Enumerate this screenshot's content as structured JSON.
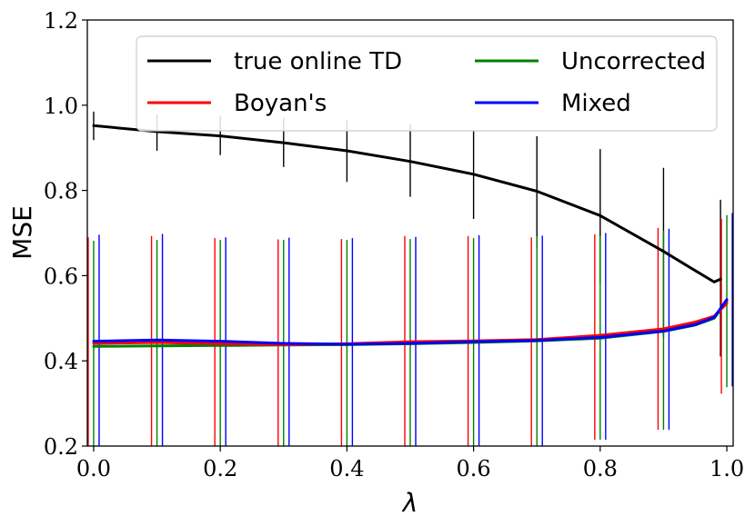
{
  "chart_data": {
    "type": "line",
    "title": "",
    "xlabel": "λ",
    "ylabel": "MSE",
    "xlim": [
      -0.01,
      1.01
    ],
    "ylim": [
      0.2,
      1.2
    ],
    "x_ticks": [
      "0.0",
      "0.2",
      "0.4",
      "0.6",
      "0.8",
      "1.0"
    ],
    "y_ticks": [
      "0.2",
      "0.4",
      "0.6",
      "0.8",
      "1.0",
      "1.2"
    ],
    "grid": false,
    "legend": {
      "placement": "top-right",
      "columns": 2
    },
    "series": [
      {
        "name": "true online TD",
        "color": "#000000",
        "x": [
          0.0,
          0.1,
          0.2,
          0.3,
          0.4,
          0.5,
          0.6,
          0.7,
          0.8,
          0.9,
          0.95,
          0.98,
          0.99
        ],
        "y": [
          0.952,
          0.938,
          0.928,
          0.912,
          0.893,
          0.868,
          0.838,
          0.798,
          0.741,
          0.657,
          0.612,
          0.585,
          0.592
        ],
        "error_x": [
          0.0,
          0.1,
          0.2,
          0.3,
          0.4,
          0.5,
          0.6,
          0.7,
          0.8,
          0.9,
          0.99
        ],
        "error_low": [
          0.918,
          0.893,
          0.883,
          0.855,
          0.82,
          0.785,
          0.733,
          0.665,
          0.582,
          0.455,
          0.41
        ],
        "error_high": [
          0.985,
          0.978,
          0.975,
          0.97,
          0.965,
          0.955,
          0.942,
          0.927,
          0.897,
          0.853,
          0.778
        ]
      },
      {
        "name": "Boyan's",
        "color": "#ff0000",
        "x": [
          0.0,
          0.1,
          0.2,
          0.3,
          0.4,
          0.5,
          0.6,
          0.7,
          0.8,
          0.9,
          0.95,
          0.98,
          1.0
        ],
        "y": [
          0.441,
          0.443,
          0.44,
          0.438,
          0.44,
          0.445,
          0.447,
          0.45,
          0.46,
          0.475,
          0.491,
          0.505,
          0.535
        ],
        "error_x": [
          0.0,
          0.1,
          0.2,
          0.3,
          0.4,
          0.5,
          0.6,
          0.7,
          0.8,
          0.9,
          1.0
        ],
        "error_low": [
          0.2,
          0.2,
          0.2,
          0.2,
          0.2,
          0.2,
          0.2,
          0.2,
          0.215,
          0.238,
          0.323
        ],
        "error_high": [
          0.69,
          0.693,
          0.688,
          0.685,
          0.686,
          0.693,
          0.693,
          0.69,
          0.697,
          0.712,
          0.733
        ]
      },
      {
        "name": "Uncorrected",
        "color": "#008000",
        "x": [
          0.0,
          0.1,
          0.2,
          0.3,
          0.4,
          0.5,
          0.6,
          0.7,
          0.8,
          0.9,
          0.95,
          0.98,
          1.0
        ],
        "y": [
          0.434,
          0.435,
          0.436,
          0.437,
          0.438,
          0.44,
          0.443,
          0.447,
          0.453,
          0.469,
          0.484,
          0.5,
          0.54
        ],
        "error_x": [
          0.0,
          0.1,
          0.2,
          0.3,
          0.4,
          0.5,
          0.6,
          0.7,
          0.8,
          0.9,
          1.0
        ],
        "error_low": [
          0.2,
          0.2,
          0.2,
          0.2,
          0.2,
          0.2,
          0.2,
          0.2,
          0.215,
          0.238,
          0.338
        ],
        "error_high": [
          0.682,
          0.684,
          0.684,
          0.684,
          0.684,
          0.686,
          0.688,
          0.692,
          0.693,
          0.705,
          0.742
        ]
      },
      {
        "name": "Mixed",
        "color": "#0000ff",
        "x": [
          0.0,
          0.1,
          0.2,
          0.3,
          0.4,
          0.5,
          0.6,
          0.7,
          0.8,
          0.9,
          0.95,
          0.98,
          1.0
        ],
        "y": [
          0.446,
          0.449,
          0.446,
          0.441,
          0.439,
          0.441,
          0.445,
          0.448,
          0.455,
          0.47,
          0.485,
          0.502,
          0.544
        ],
        "error_x": [
          0.0,
          0.1,
          0.2,
          0.3,
          0.4,
          0.5,
          0.6,
          0.7,
          0.8,
          0.9,
          1.0
        ],
        "error_low": [
          0.2,
          0.2,
          0.2,
          0.2,
          0.2,
          0.2,
          0.2,
          0.2,
          0.215,
          0.238,
          0.34
        ],
        "error_high": [
          0.696,
          0.698,
          0.69,
          0.689,
          0.688,
          0.691,
          0.695,
          0.694,
          0.7,
          0.71,
          0.747
        ]
      }
    ]
  }
}
